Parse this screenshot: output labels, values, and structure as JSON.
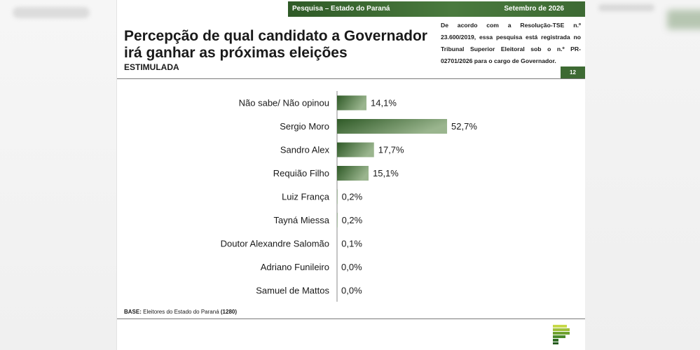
{
  "header": {
    "left": "Pesquisa – Estado do Paraná",
    "right": "Setembro de 2026"
  },
  "title": "Percepção de qual candidato a Governador irá ganhar as próximas eleições",
  "subtitle": "ESTIMULADA",
  "note": "De acordo com a Resolução-TSE n.º 23.600/2019, essa pesquisa está registrada no Tribunal Superior Eleitoral sob o n.º PR-02701/2026 para o cargo de Governador.",
  "page_number": "12",
  "base": {
    "label": "BASE:",
    "text": "Eleitores do Estado do Paraná",
    "count": "(1280)"
  },
  "colors": {
    "bar_dark": "#2f5a27",
    "bar_light": "#9ab58e",
    "accent": "#3d6a33"
  },
  "logo_icon": "green-stripes-logo-icon",
  "chart_data": {
    "type": "bar",
    "orientation": "horizontal",
    "categories": [
      "Não sabe/ Não opinou",
      "Sergio Moro",
      "Sandro Alex",
      "Requião Filho",
      "Luiz França",
      "Tayná Miessa",
      "Doutor Alexandre Salomão",
      "Adriano Funileiro",
      "Samuel de Mattos"
    ],
    "values": [
      14.1,
      52.7,
      17.7,
      15.1,
      0.2,
      0.2,
      0.1,
      0.0,
      0.0
    ],
    "data_labels": [
      "14,1%",
      "52,7%",
      "17,7%",
      "15,1%",
      "0,2%",
      "0,2%",
      "0,1%",
      "0,0%",
      "0,0%"
    ],
    "title": "",
    "xlabel": "",
    "ylabel": "",
    "xlim": [
      0,
      100
    ],
    "grid": false,
    "legend": "none"
  }
}
